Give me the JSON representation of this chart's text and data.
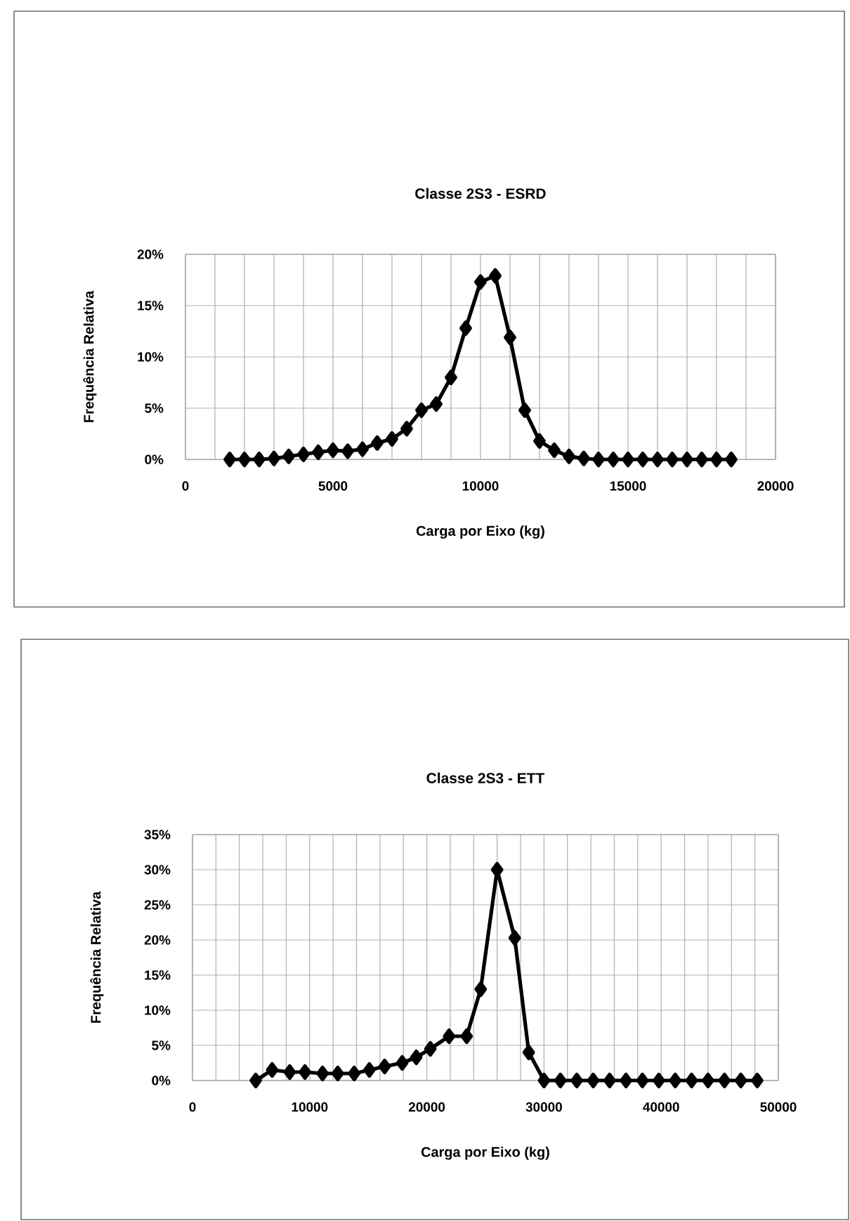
{
  "chart_data": [
    {
      "type": "line",
      "title": "Classe 2S3 - ESRD",
      "xlabel": "Carga por Eixo (kg)",
      "ylabel": "Frequência Relativa",
      "color": "#000000",
      "marker": "diamond",
      "grid": true,
      "x": [
        1500,
        2000,
        2500,
        3000,
        3500,
        4000,
        4500,
        5000,
        5500,
        6000,
        6500,
        7000,
        7500,
        8000,
        8500,
        9000,
        9500,
        10000,
        10500,
        11000,
        11500,
        12000,
        12500,
        13000,
        13500,
        14000,
        14500,
        15000,
        15500,
        16000,
        16500,
        17000,
        17500,
        18000,
        18500
      ],
      "values": [
        0,
        0,
        0,
        0.1,
        0.3,
        0.5,
        0.7,
        0.9,
        0.8,
        1.0,
        1.6,
        2.0,
        3.0,
        4.8,
        5.4,
        8.0,
        12.8,
        17.3,
        17.9,
        11.9,
        4.8,
        1.8,
        0.9,
        0.3,
        0.1,
        0,
        0,
        0,
        0,
        0,
        0,
        0,
        0,
        0,
        0
      ],
      "xlim": [
        0,
        20000
      ],
      "xticks": [
        0,
        {
          "value": 1000,
          "label": null
        },
        {
          "value": 2000,
          "label": null
        },
        {
          "value": 3000,
          "label": null
        },
        {
          "value": 4000,
          "label": null
        },
        5000,
        {
          "value": 6000,
          "label": null
        },
        {
          "value": 7000,
          "label": null
        },
        {
          "value": 8000,
          "label": null
        },
        {
          "value": 9000,
          "label": null
        },
        10000,
        {
          "value": 11000,
          "label": null
        },
        {
          "value": 12000,
          "label": null
        },
        {
          "value": 13000,
          "label": null
        },
        {
          "value": 14000,
          "label": null
        },
        15000,
        {
          "value": 16000,
          "label": null
        },
        {
          "value": 17000,
          "label": null
        },
        {
          "value": 18000,
          "label": null
        },
        {
          "value": 19000,
          "label": null
        },
        20000
      ],
      "ylim": [
        0,
        20
      ],
      "yticks": [
        {
          "value": 0,
          "label": "0%"
        },
        {
          "value": 5,
          "label": "5%"
        },
        {
          "value": 10,
          "label": "10%"
        },
        {
          "value": 15,
          "label": "15%"
        },
        {
          "value": 20,
          "label": "20%"
        }
      ]
    },
    {
      "type": "line",
      "title": "Classe 2S3 - ETT",
      "xlabel": "Carga por Eixo (kg)",
      "ylabel": "Frequência Relativa",
      "color": "#000000",
      "marker": "diamond",
      "grid": true,
      "x": [
        5400,
        6800,
        8300,
        9600,
        11100,
        12400,
        13800,
        15100,
        16400,
        17900,
        19100,
        20300,
        21900,
        23400,
        24600,
        26000,
        27500,
        28700,
        30000,
        31400,
        32800,
        34200,
        35600,
        37000,
        38400,
        39800,
        41200,
        42600,
        44000,
        45400,
        46800,
        48200
      ],
      "values": [
        0,
        1.5,
        1.2,
        1.2,
        1.0,
        1.0,
        1.0,
        1.5,
        2.0,
        2.5,
        3.3,
        4.5,
        6.3,
        6.3,
        13.0,
        30.0,
        20.3,
        4.0,
        0,
        0,
        0,
        0,
        0,
        0,
        0,
        0,
        0,
        0,
        0,
        0,
        0,
        0
      ],
      "xlim": [
        0,
        50000
      ],
      "xticks": [
        0,
        {
          "value": 2000,
          "label": null
        },
        {
          "value": 4000,
          "label": null
        },
        {
          "value": 6000,
          "label": null
        },
        {
          "value": 8000,
          "label": null
        },
        10000,
        {
          "value": 12000,
          "label": null
        },
        {
          "value": 14000,
          "label": null
        },
        {
          "value": 16000,
          "label": null
        },
        {
          "value": 18000,
          "label": null
        },
        20000,
        {
          "value": 22000,
          "label": null
        },
        {
          "value": 24000,
          "label": null
        },
        {
          "value": 26000,
          "label": null
        },
        {
          "value": 28000,
          "label": null
        },
        30000,
        {
          "value": 32000,
          "label": null
        },
        {
          "value": 34000,
          "label": null
        },
        {
          "value": 36000,
          "label": null
        },
        {
          "value": 38000,
          "label": null
        },
        40000,
        {
          "value": 42000,
          "label": null
        },
        {
          "value": 44000,
          "label": null
        },
        {
          "value": 46000,
          "label": null
        },
        {
          "value": 48000,
          "label": null
        },
        50000
      ],
      "ylim": [
        0,
        35
      ],
      "yticks": [
        {
          "value": 0,
          "label": "0%"
        },
        {
          "value": 5,
          "label": "5%"
        },
        {
          "value": 10,
          "label": "10%"
        },
        {
          "value": 15,
          "label": "15%"
        },
        {
          "value": 20,
          "label": "20%"
        },
        {
          "value": 25,
          "label": "25%"
        },
        {
          "value": 30,
          "label": "30%"
        },
        {
          "value": 35,
          "label": "35%"
        }
      ]
    }
  ]
}
